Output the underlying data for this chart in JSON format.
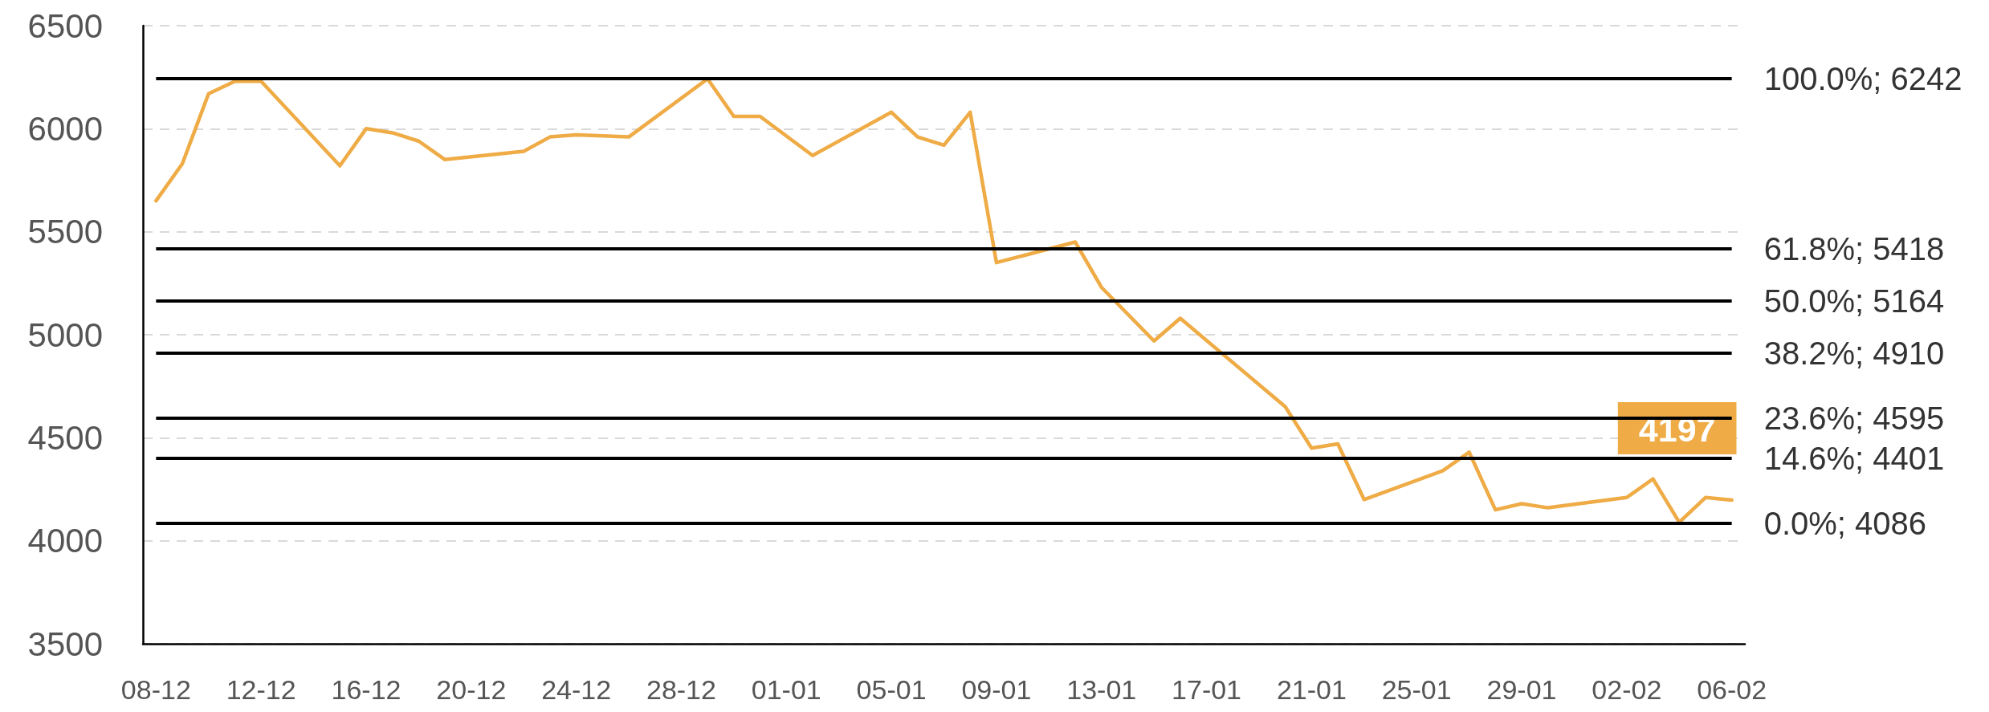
{
  "chart_data": {
    "type": "line",
    "categories": [
      "08-12",
      null,
      null,
      null,
      "12-12",
      null,
      null,
      null,
      "16-12",
      null,
      null,
      null,
      "20-12",
      null,
      null,
      null,
      "24-12",
      null,
      null,
      null,
      "28-12",
      null,
      null,
      null,
      "01-01",
      null,
      null,
      null,
      "05-01",
      null,
      null,
      null,
      "09-01",
      null,
      null,
      null,
      "13-01",
      null,
      null,
      null,
      "17-01",
      null,
      null,
      null,
      "21-01",
      null,
      null,
      null,
      "25-01",
      null,
      null,
      null,
      "29-01",
      null,
      null,
      null,
      "02-02",
      null,
      null,
      null,
      "06-02"
    ],
    "values": [
      5650,
      5830,
      6170,
      6230,
      6230,
      null,
      null,
      5820,
      6000,
      5980,
      5940,
      5850,
      null,
      null,
      5890,
      5960,
      5970,
      null,
      5960,
      null,
      null,
      6242,
      6060,
      6060,
      null,
      5870,
      null,
      null,
      6080,
      5960,
      5920,
      6080,
      5350,
      null,
      null,
      5450,
      5230,
      null,
      4970,
      5080,
      null,
      null,
      null,
      4650,
      4450,
      4470,
      4200,
      null,
      null,
      4340,
      4430,
      4150,
      4180,
      4160,
      null,
      null,
      4210,
      4300,
      4090,
      4210,
      4197
    ],
    "value_labels": [
      null,
      null,
      null,
      null,
      null,
      null,
      null,
      null,
      null,
      null,
      null,
      null,
      null,
      null,
      null,
      null,
      null,
      null,
      null,
      null,
      null,
      null,
      null,
      null,
      null,
      null,
      null,
      null,
      null,
      null,
      null,
      null,
      null,
      null,
      null,
      null,
      null,
      null,
      null,
      null,
      null,
      null,
      null,
      null,
      null,
      null,
      null,
      null,
      null,
      null,
      null,
      null,
      null,
      null,
      null,
      null,
      null,
      null,
      null,
      null,
      "4197"
    ],
    "color": "#efab45",
    "ylim": [
      3500,
      6500
    ],
    "yticks": [
      3500,
      4000,
      4500,
      5000,
      5500,
      6000,
      6500
    ],
    "grid": "y",
    "ref_lines": [
      {
        "axis": "y",
        "value": 6242,
        "label": "100.0%; 6242",
        "color": "#000000"
      },
      {
        "axis": "y",
        "value": 5418,
        "label": "61.8%; 5418",
        "color": "#000000"
      },
      {
        "axis": "y",
        "value": 5164,
        "label": "50.0%; 5164",
        "color": "#000000"
      },
      {
        "axis": "y",
        "value": 4910,
        "label": "38.2%; 4910",
        "color": "#000000"
      },
      {
        "axis": "y",
        "value": 4595,
        "label": "23.6%; 4595",
        "color": "#000000"
      },
      {
        "axis": "y",
        "value": 4401,
        "label": "14.6%; 4401",
        "color": "#000000"
      },
      {
        "axis": "y",
        "value": 4086,
        "label": "0.0%; 4086",
        "color": "#000000"
      }
    ]
  }
}
